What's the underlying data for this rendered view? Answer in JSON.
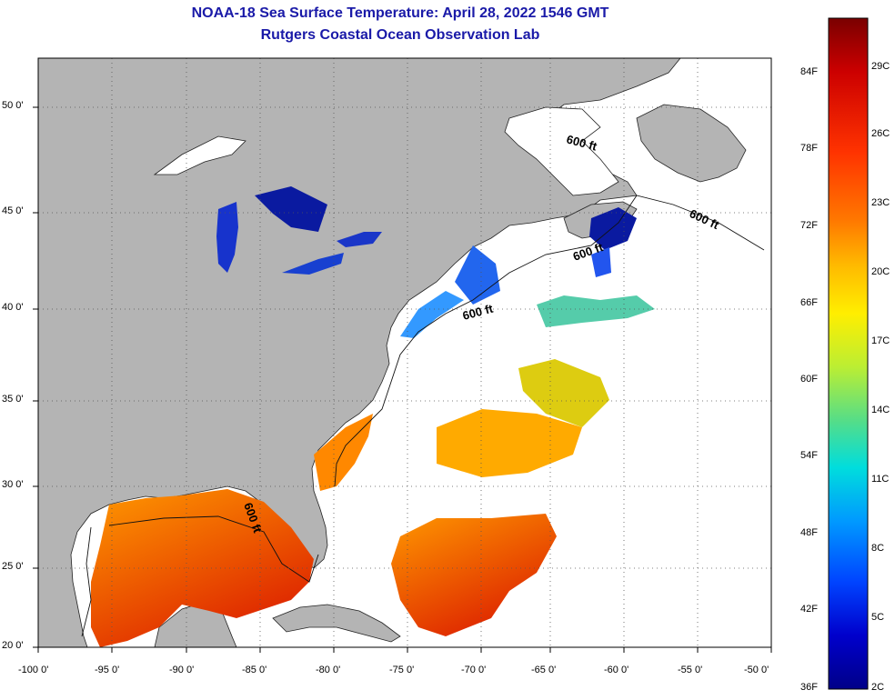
{
  "title": {
    "line1": "NOAA-18 Sea Surface Temperature:  April 28, 2022 1546 GMT",
    "line2": "Rutgers Coastal Ocean Observation Lab"
  },
  "map": {
    "lat_labels": [
      "50 0'",
      "45 0'",
      "40 0'",
      "35 0'",
      "30 0'",
      "25 0'",
      "20 0'"
    ],
    "lon_labels": [
      "-100 0'",
      "-95 0'",
      "-90 0'",
      "-85 0'",
      "-80 0'",
      "-75 0'",
      "-70 0'",
      "-65 0'",
      "-60 0'",
      "-55 0'",
      "-50 0'"
    ],
    "contour_label": "600 ft",
    "colors": {
      "land": "#b4b4b4",
      "water_no_data": "#ffffff",
      "grid": "#444444"
    }
  },
  "colorbar": {
    "fahrenheit_labels": [
      "84F",
      "78F",
      "72F",
      "66F",
      "60F",
      "54F",
      "48F",
      "42F",
      "36F"
    ],
    "celsius_labels": [
      "29C",
      "26C",
      "23C",
      "20C",
      "17C",
      "14C",
      "11C",
      "8C",
      "5C",
      "2C"
    ],
    "gradient": [
      "#7a0000",
      "#cc0000",
      "#ff3300",
      "#ff7700",
      "#ffbb00",
      "#ffee00",
      "#bbee33",
      "#55dd88",
      "#00dddd",
      "#0099ff",
      "#0044ff",
      "#0000cc",
      "#000088"
    ]
  }
}
